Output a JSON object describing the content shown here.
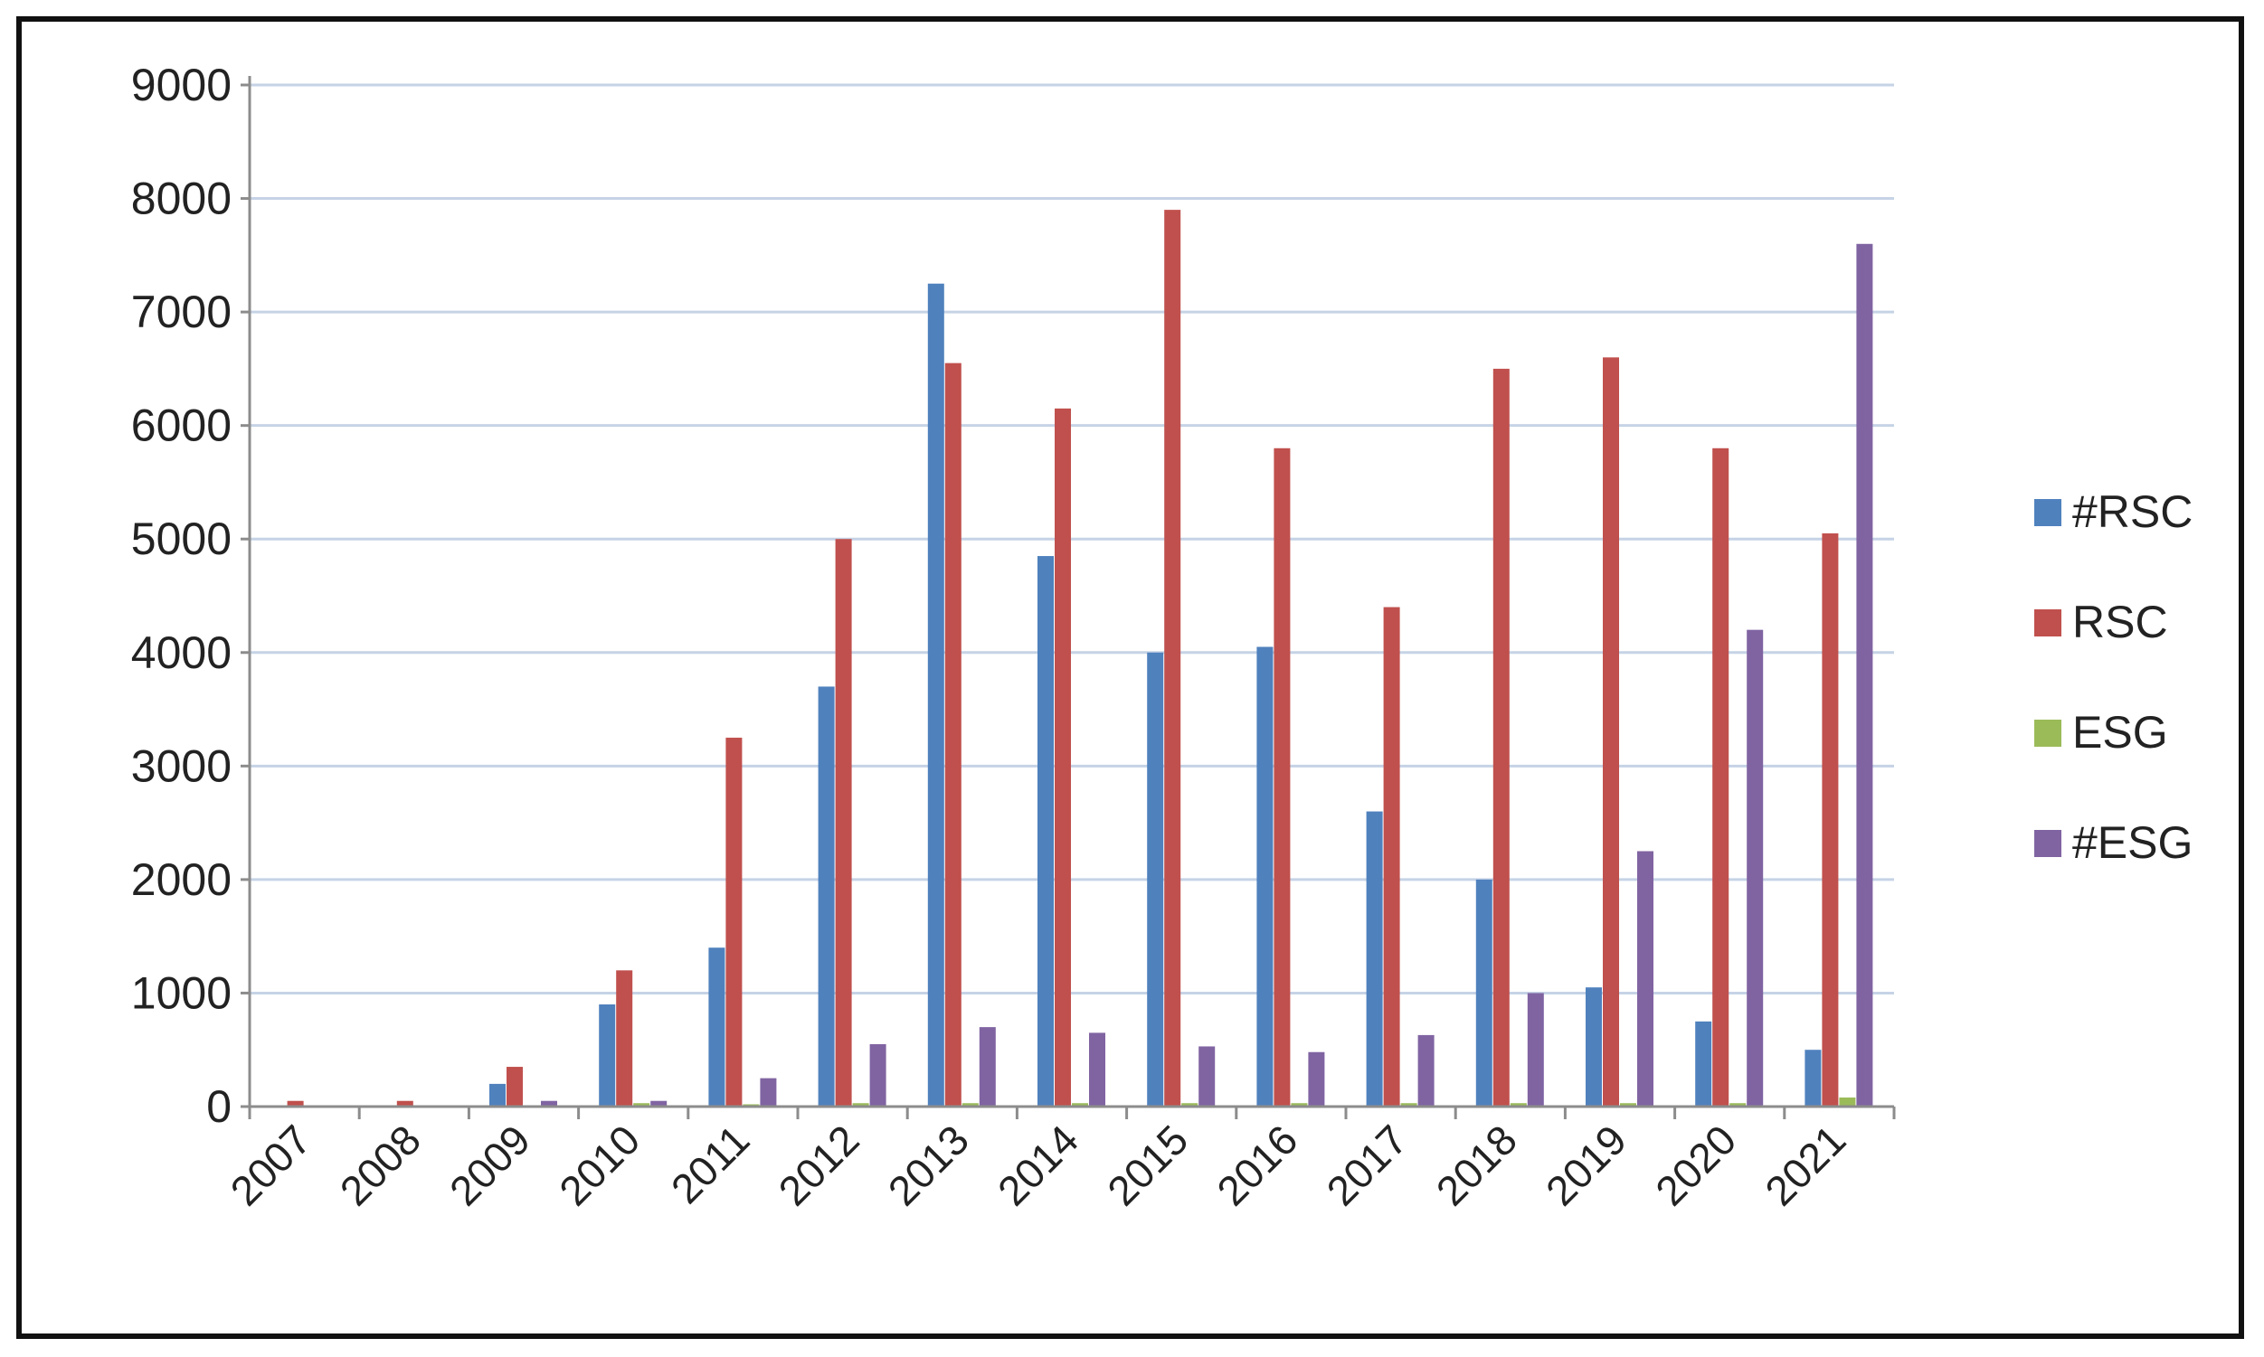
{
  "chart_data": {
    "type": "bar",
    "title": "",
    "xlabel": "",
    "ylabel": "",
    "ylim": [
      0,
      9000
    ],
    "yticks": [
      0,
      1000,
      2000,
      3000,
      4000,
      5000,
      6000,
      7000,
      8000,
      9000
    ],
    "grid": true,
    "legend_position": "right",
    "categories": [
      "2007",
      "2008",
      "2009",
      "2010",
      "2011",
      "2012",
      "2013",
      "2014",
      "2015",
      "2016",
      "2017",
      "2018",
      "2019",
      "2020",
      "2021"
    ],
    "series": [
      {
        "name": "#RSC",
        "color": "#4F81BD",
        "values": [
          0,
          0,
          200,
          900,
          1400,
          3700,
          7250,
          4850,
          4000,
          4050,
          2600,
          2000,
          1050,
          750,
          500
        ]
      },
      {
        "name": "RSC",
        "color": "#C0504D",
        "values": [
          50,
          50,
          350,
          1200,
          3250,
          5000,
          6550,
          6150,
          7900,
          5800,
          4400,
          6500,
          6600,
          5800,
          5050
        ]
      },
      {
        "name": "ESG",
        "color": "#9BBB59",
        "values": [
          0,
          0,
          0,
          30,
          20,
          30,
          30,
          30,
          30,
          30,
          30,
          30,
          30,
          30,
          80
        ]
      },
      {
        "name": "#ESG",
        "color": "#8064A2",
        "values": [
          0,
          0,
          50,
          50,
          250,
          550,
          700,
          650,
          530,
          480,
          630,
          1000,
          2250,
          4200,
          7600
        ]
      }
    ]
  },
  "colors": {
    "gridline": "#C6D3E6",
    "axis": "#8C8C8C",
    "frame": "#111111"
  }
}
